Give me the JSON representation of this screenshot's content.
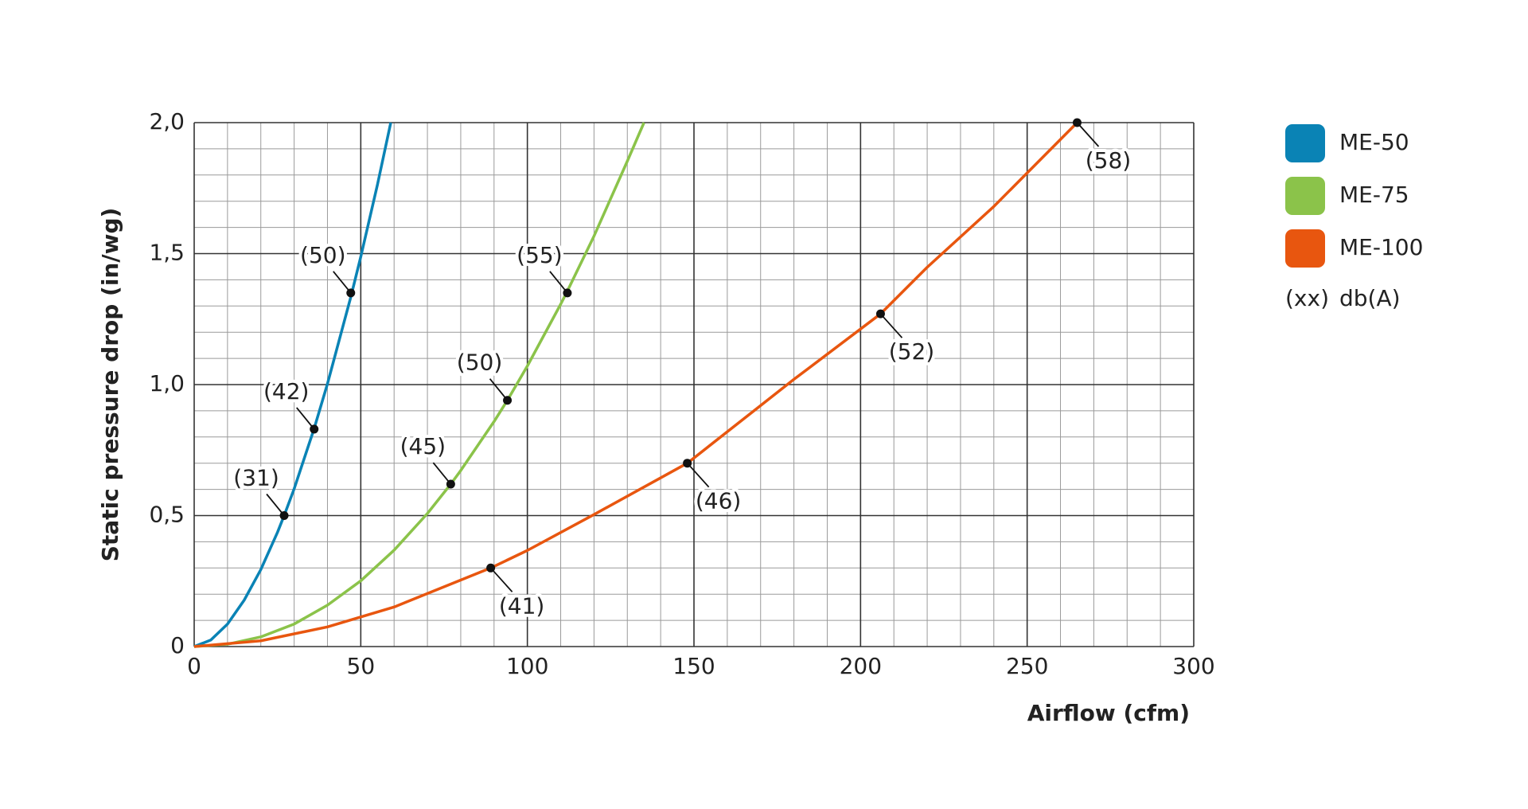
{
  "chart_data": {
    "type": "line",
    "xlabel": "Airflow (cfm)",
    "ylabel": "Static pressure drop (in/wg)",
    "xlim": [
      0,
      300
    ],
    "xticks": [
      0,
      50,
      100,
      150,
      200,
      250,
      300
    ],
    "ylim": [
      0,
      2.0
    ],
    "yticks": [
      0,
      {
        "value": 0.5,
        "label": "0,5"
      },
      {
        "value": 1.0,
        "label": "1,0"
      },
      {
        "value": 1.5,
        "label": "1,5"
      },
      {
        "value": 2.0,
        "label": "2,0"
      }
    ],
    "grid": true,
    "minor_grid": true,
    "legend": "right",
    "series": [
      {
        "name": "ME-50",
        "color": "#0a83b5",
        "x": [
          0,
          5,
          10,
          15,
          20,
          25,
          27,
          30,
          36,
          40,
          47,
          50,
          55,
          59
        ],
        "values": [
          0,
          0.025,
          0.086,
          0.177,
          0.294,
          0.436,
          0.5,
          0.602,
          0.832,
          1.003,
          1.334,
          1.488,
          1.763,
          2.0
        ],
        "marker_x": [
          27,
          36,
          47
        ],
        "marker_values": [
          0.5,
          0.83,
          1.35
        ],
        "marker_labels": [
          "(31)",
          "(42)",
          "(50)"
        ]
      },
      {
        "name": "ME-75",
        "color": "#8bc34a",
        "x": [
          0,
          10,
          20,
          30,
          40,
          50,
          60,
          70,
          77,
          80,
          90,
          94,
          100,
          110,
          112,
          120,
          130,
          135
        ],
        "values": [
          0,
          0.009,
          0.037,
          0.086,
          0.158,
          0.251,
          0.368,
          0.508,
          0.62,
          0.672,
          0.859,
          0.94,
          1.071,
          1.307,
          1.357,
          1.567,
          1.853,
          2.0
        ],
        "marker_x": [
          77,
          94,
          112
        ],
        "marker_values": [
          0.62,
          0.94,
          1.35
        ],
        "marker_labels": [
          "(45)",
          "(50)",
          "(55)"
        ]
      },
      {
        "name": "ME-100",
        "color": "#e8560f",
        "x": [
          0,
          20,
          40,
          60,
          89,
          100,
          120,
          148,
          180,
          206,
          220,
          240,
          265
        ],
        "values": [
          0,
          0.022,
          0.075,
          0.151,
          0.3,
          0.367,
          0.504,
          0.7,
          1.02,
          1.27,
          1.448,
          1.68,
          2.0
        ],
        "marker_x": [
          89,
          148,
          206,
          265
        ],
        "marker_values": [
          0.3,
          0.7,
          1.27,
          2.0
        ],
        "marker_labels": [
          "(41)",
          "(46)",
          "(52)",
          "(58)"
        ]
      }
    ],
    "legend_note": {
      "symbol": "(xx)",
      "text": "db(A)"
    }
  }
}
